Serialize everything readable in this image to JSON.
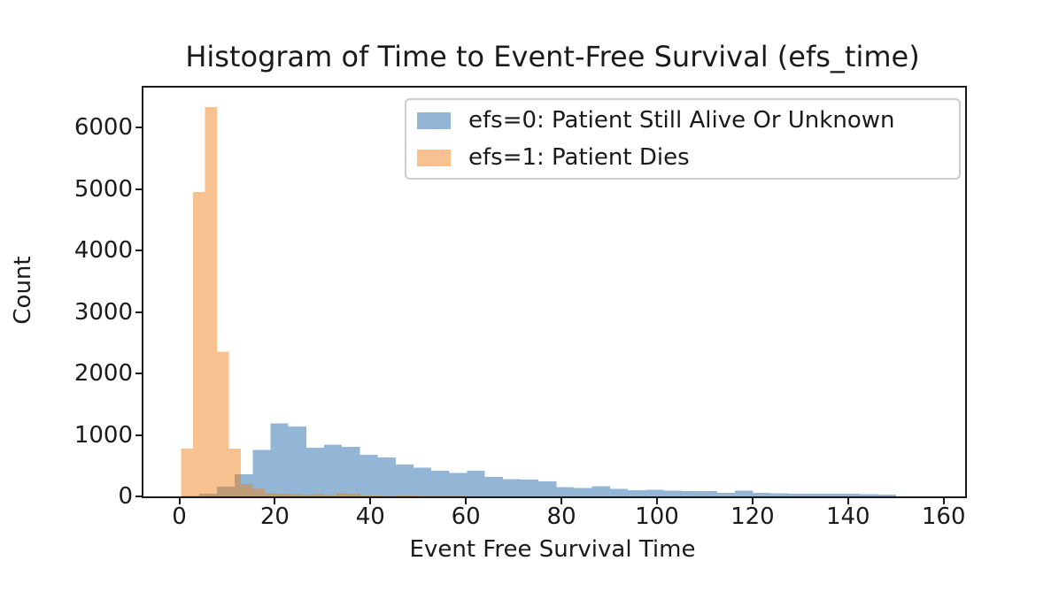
{
  "figure": {
    "background": "#ffffff",
    "text_color": "#1a1a1a"
  },
  "chart_data": {
    "type": "histogram",
    "title": "Histogram of Time to Event-Free Survival (efs_time)",
    "xlabel": "Event Free Survival Time",
    "ylabel": "Count",
    "xlim": [
      -7.5,
      164.5
    ],
    "ylim": [
      0,
      6650
    ],
    "xticks": [
      0,
      20,
      40,
      60,
      80,
      100,
      120,
      140,
      160
    ],
    "yticks": [
      0,
      1000,
      2000,
      3000,
      4000,
      5000,
      6000
    ],
    "grid": false,
    "legend_position": "upper right",
    "series": [
      {
        "name": "efs=0: Patient Still Alive Or Unknown",
        "color": "#94b6d6",
        "bin_start": 0.4,
        "bin_width": 3.74,
        "counts": [
          10,
          45,
          160,
          360,
          755,
          1190,
          1140,
          790,
          840,
          805,
          680,
          630,
          520,
          465,
          420,
          380,
          420,
          320,
          280,
          270,
          245,
          150,
          140,
          165,
          125,
          100,
          110,
          95,
          90,
          85,
          55,
          95,
          55,
          50,
          45,
          45,
          40,
          40,
          35,
          30
        ]
      },
      {
        "name": "efs=1: Patient Dies",
        "color": "rgba(237,126,16,0.47)",
        "bin_start": 0.4,
        "bin_width": 2.5,
        "counts": [
          780,
          4950,
          6330,
          2350,
          780,
          200,
          120,
          50,
          40,
          35,
          30,
          35,
          25,
          50,
          40,
          15,
          12,
          10,
          12,
          15,
          8,
          6,
          5,
          5
        ]
      }
    ]
  }
}
